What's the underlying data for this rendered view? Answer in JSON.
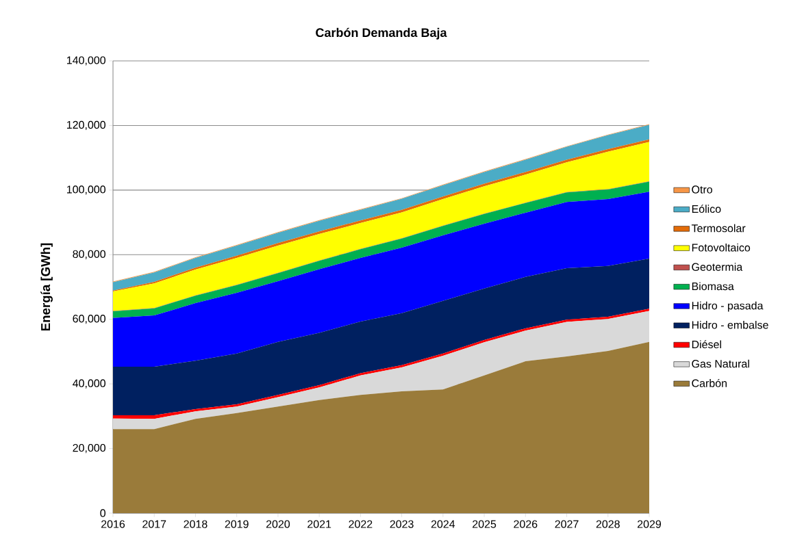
{
  "chart_data": {
    "type": "area",
    "stacked": true,
    "title": "Carbón Demanda Baja",
    "ylabel": "Energía [GWh]",
    "x": [
      2016,
      2017,
      2018,
      2019,
      2020,
      2021,
      2022,
      2023,
      2024,
      2025,
      2026,
      2027,
      2028,
      2029
    ],
    "xlim": [
      2016,
      2029
    ],
    "xticks": [
      2016,
      2017,
      2018,
      2019,
      2020,
      2021,
      2022,
      2023,
      2024,
      2025,
      2026,
      2027,
      2028,
      2029
    ],
    "ylim": [
      0,
      140000
    ],
    "yticks": [
      0,
      {
        "value": 20000,
        "label": "20,000"
      },
      {
        "value": 40000,
        "label": "40,000"
      },
      {
        "value": 60000,
        "label": "60,000"
      },
      {
        "value": 80000,
        "label": "80,000"
      },
      {
        "value": 100000,
        "label": "100,000"
      },
      {
        "value": 120000,
        "label": "120,000"
      },
      {
        "value": 140000,
        "label": "140,000"
      }
    ],
    "grid": "y",
    "legend": "right",
    "series": [
      {
        "name": "Carbón",
        "color": "#9a7b3a",
        "values": [
          26000,
          26000,
          29200,
          31000,
          33000,
          35000,
          36600,
          37700,
          38300,
          42600,
          47000,
          48500,
          50200,
          53000
        ]
      },
      {
        "name": "Gas Natural",
        "color": "#d9d9d9",
        "values": [
          3300,
          3200,
          2300,
          2000,
          2900,
          3900,
          6000,
          7400,
          10400,
          10300,
          9500,
          10700,
          9900,
          9600
        ]
      },
      {
        "name": "Diésel",
        "color": "#ff0000",
        "values": [
          1000,
          1100,
          700,
          700,
          700,
          700,
          700,
          700,
          700,
          700,
          700,
          700,
          700,
          700
        ]
      },
      {
        "name": "Hidro - embalse",
        "color": "#002060",
        "values": [
          15000,
          15000,
          15000,
          15700,
          16400,
          16200,
          16000,
          16100,
          16300,
          15900,
          15900,
          15900,
          15700,
          15500
        ]
      },
      {
        "name": "Hidro - pasada",
        "color": "#0000ff",
        "values": [
          15100,
          15900,
          17800,
          18800,
          18800,
          19700,
          19700,
          20300,
          20300,
          20100,
          19900,
          20500,
          20700,
          20700
        ]
      },
      {
        "name": "Biomasa",
        "color": "#00b050",
        "values": [
          2100,
          2200,
          2300,
          2400,
          2500,
          2600,
          2700,
          2800,
          2900,
          3000,
          3000,
          3000,
          3000,
          3100
        ]
      },
      {
        "name": "Geotermia",
        "color": "#c0504d",
        "values": [
          100,
          100,
          100,
          100,
          100,
          100,
          100,
          100,
          100,
          100,
          100,
          100,
          100,
          100
        ]
      },
      {
        "name": "Fotovoltaico",
        "color": "#ffff00",
        "values": [
          6000,
          7600,
          8000,
          8300,
          8400,
          8200,
          8000,
          8000,
          8200,
          8500,
          8700,
          9200,
          11600,
          12200
        ]
      },
      {
        "name": "Termosolar",
        "color": "#e36c09",
        "values": [
          300,
          500,
          600,
          700,
          800,
          800,
          800,
          800,
          800,
          800,
          800,
          800,
          800,
          800
        ]
      },
      {
        "name": "Eólico",
        "color": "#4bacc6",
        "values": [
          2600,
          2900,
          3000,
          3100,
          3200,
          3300,
          3300,
          3400,
          3500,
          3600,
          3800,
          4000,
          4300,
          4500
        ]
      },
      {
        "name": "Otro",
        "color": "#f79646",
        "values": [
          200,
          200,
          200,
          200,
          200,
          200,
          200,
          200,
          200,
          200,
          200,
          200,
          200,
          200
        ]
      }
    ]
  }
}
